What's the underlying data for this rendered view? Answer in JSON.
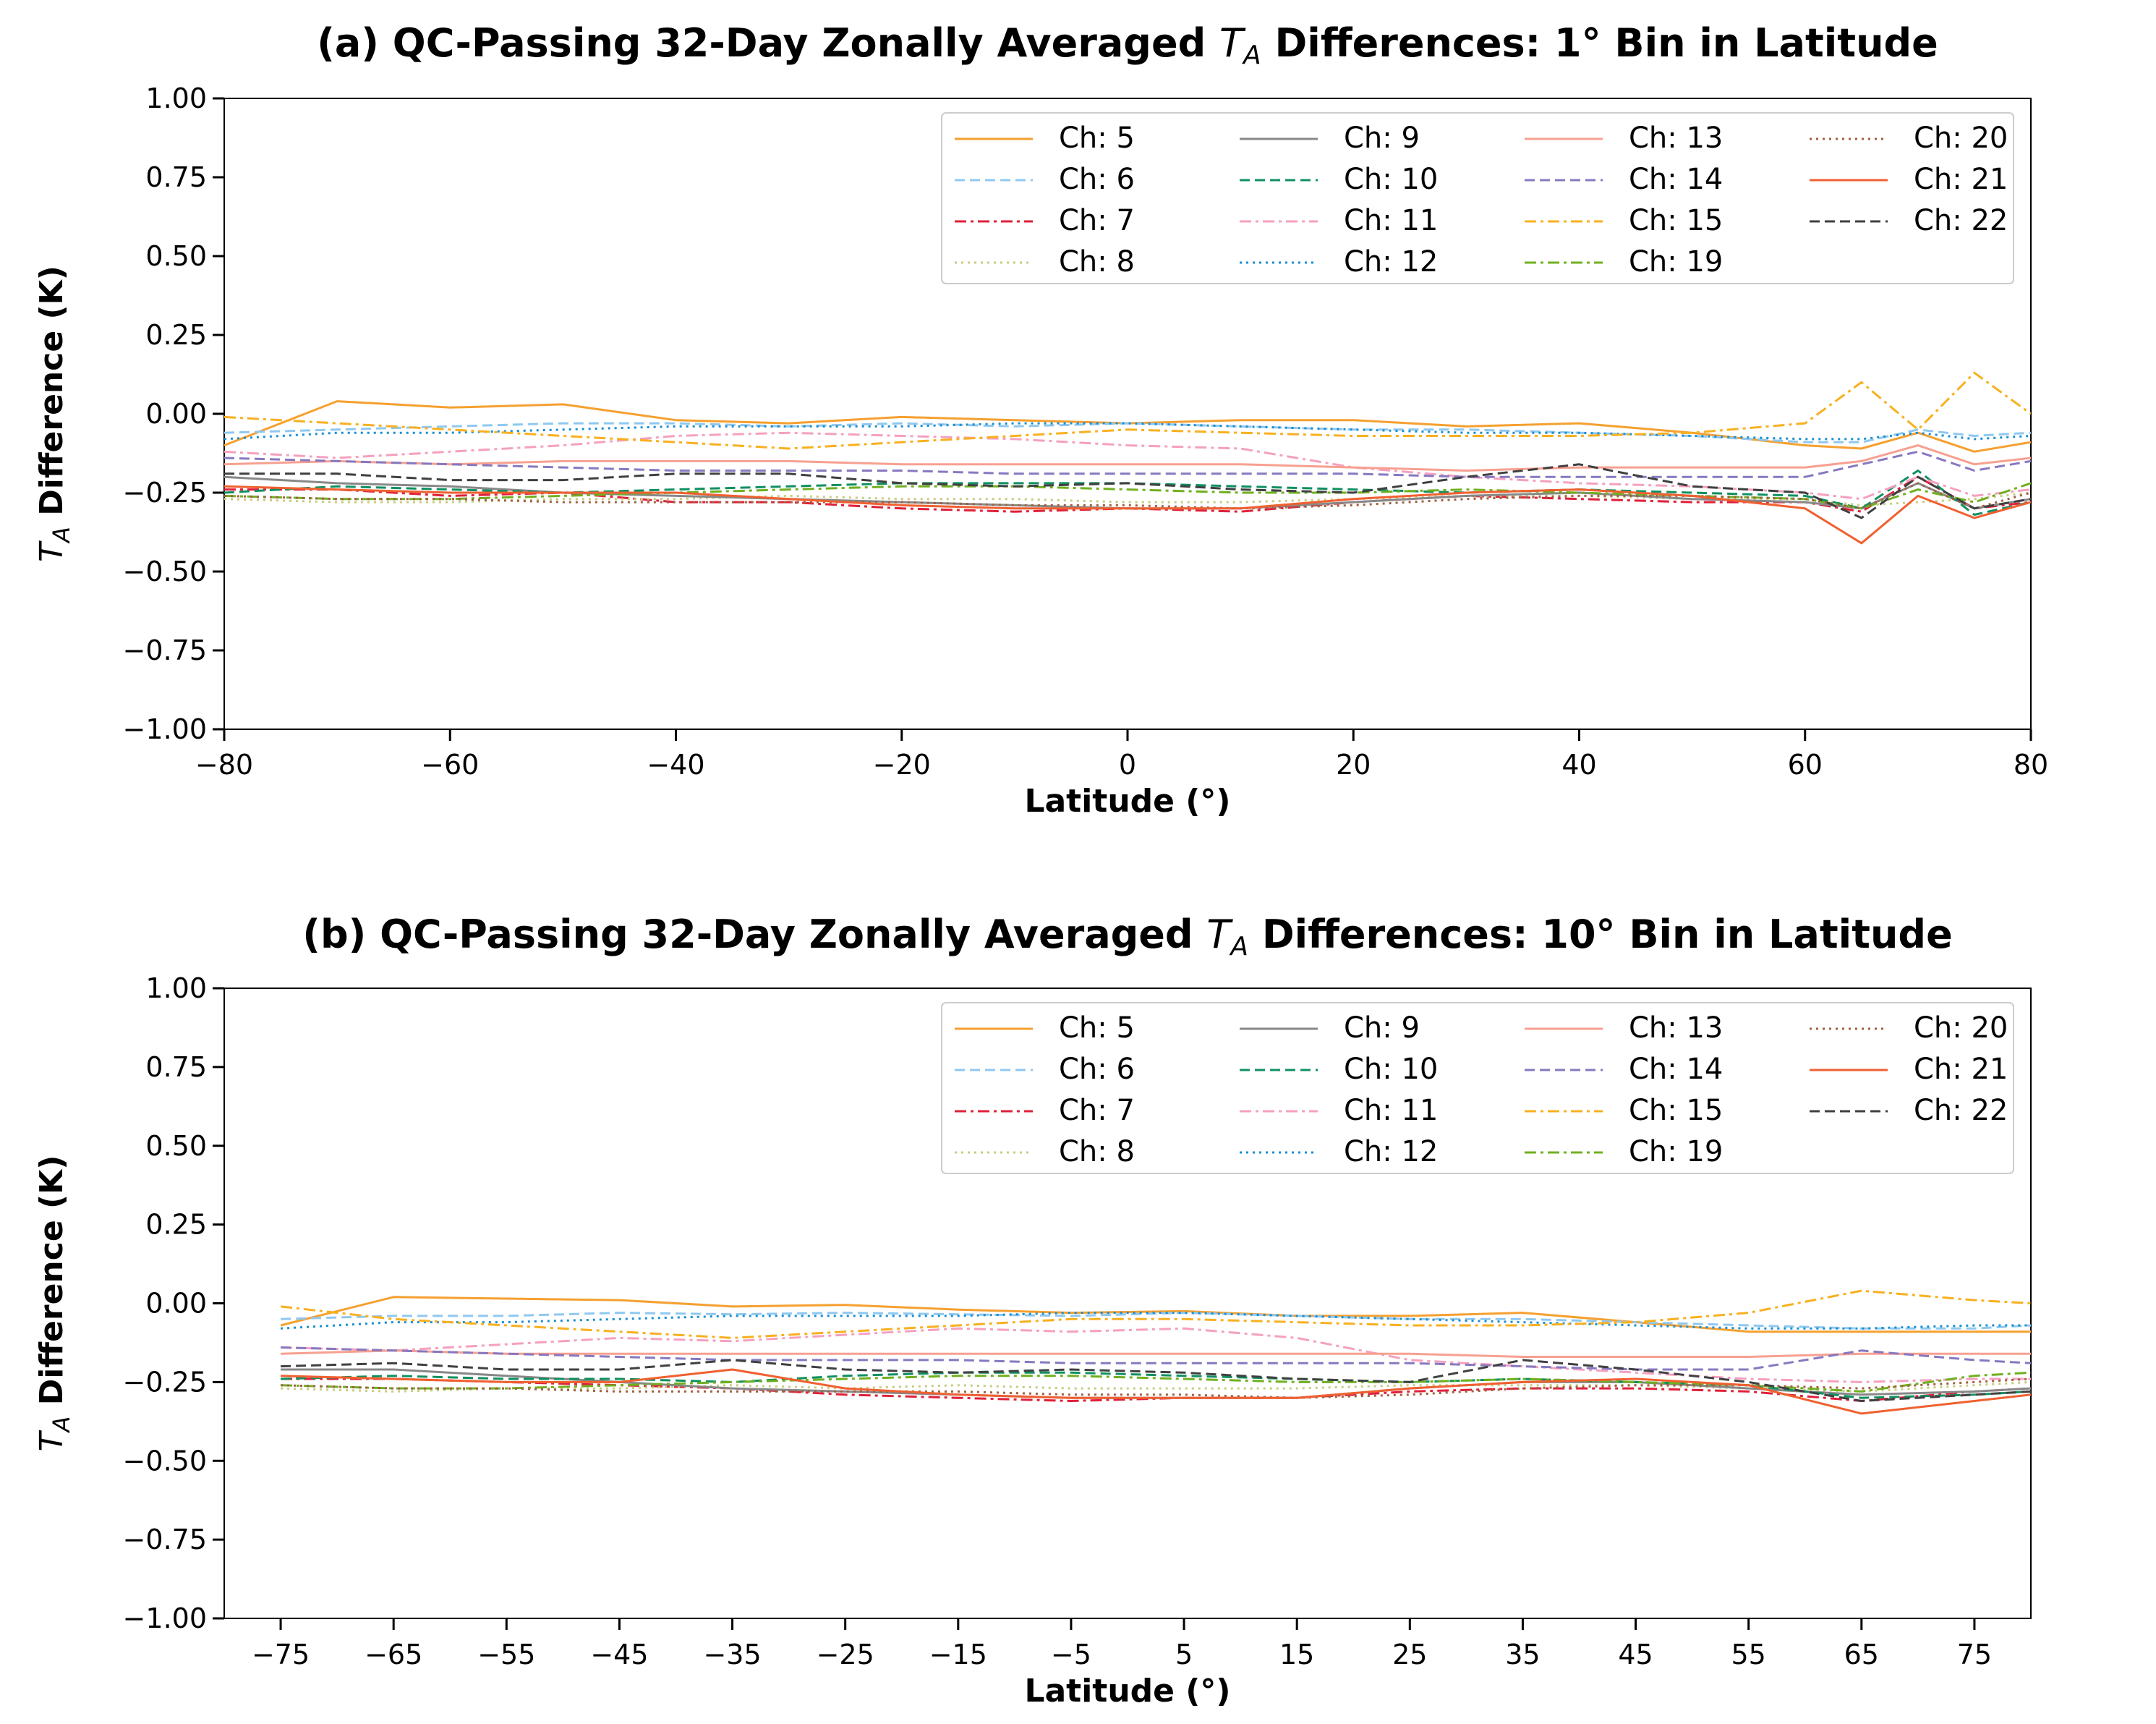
{
  "chart_data": [
    {
      "type": "line",
      "title_prefix": "(a) QC-Passing 32-Day Zonally Averaged ",
      "title_symbol": "T",
      "title_subscript": "A",
      "title_suffix": " Differences: 1° Bin in Latitude",
      "xlabel": "Latitude (°)",
      "ylabel_symbol": "T",
      "ylabel_subscript": "A",
      "ylabel_suffix": " Difference (K)",
      "xlim": [
        -80,
        80
      ],
      "ylim": [
        -1.0,
        1.0
      ],
      "xticks": [
        -80,
        -60,
        -40,
        -20,
        0,
        20,
        40,
        60,
        80
      ],
      "xtick_labels": [
        "−80",
        "−60",
        "−40",
        "−20",
        "0",
        "20",
        "40",
        "60",
        "80"
      ],
      "yticks": [
        1.0,
        0.75,
        0.5,
        0.25,
        0.0,
        -0.25,
        -0.5,
        -0.75,
        -1.0
      ],
      "ytick_labels": [
        "1.00",
        "0.75",
        "0.50",
        "0.25",
        "0.00",
        "−0.25",
        "−0.50",
        "−0.75",
        "−1.00"
      ],
      "legend_loc": "upper-right",
      "x": [
        -80,
        -70,
        -60,
        -50,
        -40,
        -30,
        -20,
        -10,
        0,
        10,
        20,
        30,
        40,
        50,
        60,
        65,
        70,
        75,
        80
      ],
      "series": [
        {
          "name": "Ch: 5",
          "color": "#f5a030",
          "dash": "solid",
          "values": [
            -0.1,
            0.04,
            0.02,
            0.03,
            -0.02,
            -0.03,
            -0.01,
            -0.02,
            -0.03,
            -0.02,
            -0.02,
            -0.04,
            -0.03,
            -0.06,
            -0.1,
            -0.11,
            -0.06,
            -0.12,
            -0.09
          ]
        },
        {
          "name": "Ch: 6",
          "color": "#8fc8f0",
          "dash": "dash",
          "values": [
            -0.06,
            -0.05,
            -0.04,
            -0.03,
            -0.03,
            -0.04,
            -0.03,
            -0.04,
            -0.03,
            -0.04,
            -0.05,
            -0.05,
            -0.06,
            -0.07,
            -0.09,
            -0.09,
            -0.05,
            -0.07,
            -0.06
          ]
        },
        {
          "name": "Ch: 7",
          "color": "#e0203a",
          "dash": "dashdot",
          "values": [
            -0.24,
            -0.24,
            -0.26,
            -0.25,
            -0.28,
            -0.28,
            -0.3,
            -0.31,
            -0.3,
            -0.31,
            -0.28,
            -0.26,
            -0.27,
            -0.28,
            -0.28,
            -0.31,
            -0.2,
            -0.3,
            -0.28
          ]
        },
        {
          "name": "Ch: 8",
          "color": "#c8cc80",
          "dash": "dot",
          "values": [
            -0.27,
            -0.28,
            -0.28,
            -0.27,
            -0.27,
            -0.26,
            -0.27,
            -0.27,
            -0.28,
            -0.28,
            -0.27,
            -0.26,
            -0.26,
            -0.27,
            -0.27,
            -0.29,
            -0.28,
            -0.27,
            -0.25
          ]
        },
        {
          "name": "Ch: 9",
          "color": "#888888",
          "dash": "solid",
          "values": [
            -0.2,
            -0.22,
            -0.23,
            -0.25,
            -0.26,
            -0.27,
            -0.28,
            -0.29,
            -0.3,
            -0.3,
            -0.28,
            -0.26,
            -0.25,
            -0.27,
            -0.28,
            -0.3,
            -0.22,
            -0.3,
            -0.27
          ]
        },
        {
          "name": "Ch: 10",
          "color": "#109060",
          "dash": "dash",
          "values": [
            -0.25,
            -0.23,
            -0.24,
            -0.25,
            -0.24,
            -0.23,
            -0.22,
            -0.22,
            -0.22,
            -0.23,
            -0.24,
            -0.25,
            -0.24,
            -0.25,
            -0.26,
            -0.3,
            -0.18,
            -0.32,
            -0.28
          ]
        },
        {
          "name": "Ch: 11",
          "color": "#f5a0c0",
          "dash": "dashdot",
          "values": [
            -0.12,
            -0.14,
            -0.12,
            -0.1,
            -0.07,
            -0.06,
            -0.07,
            -0.08,
            -0.1,
            -0.11,
            -0.17,
            -0.2,
            -0.22,
            -0.23,
            -0.25,
            -0.27,
            -0.2,
            -0.26,
            -0.24
          ]
        },
        {
          "name": "Ch: 12",
          "color": "#1a8fd0",
          "dash": "dot",
          "values": [
            -0.08,
            -0.06,
            -0.06,
            -0.05,
            -0.04,
            -0.04,
            -0.04,
            -0.03,
            -0.03,
            -0.04,
            -0.05,
            -0.06,
            -0.06,
            -0.07,
            -0.08,
            -0.08,
            -0.06,
            -0.08,
            -0.07
          ]
        },
        {
          "name": "Ch: 13",
          "color": "#f7a090",
          "dash": "solid",
          "values": [
            -0.16,
            -0.15,
            -0.16,
            -0.15,
            -0.15,
            -0.15,
            -0.16,
            -0.16,
            -0.16,
            -0.16,
            -0.17,
            -0.18,
            -0.17,
            -0.17,
            -0.17,
            -0.15,
            -0.1,
            -0.16,
            -0.14
          ]
        },
        {
          "name": "Ch: 14",
          "color": "#8878c0",
          "dash": "dash",
          "values": [
            -0.14,
            -0.15,
            -0.16,
            -0.17,
            -0.18,
            -0.18,
            -0.18,
            -0.19,
            -0.19,
            -0.19,
            -0.19,
            -0.2,
            -0.2,
            -0.2,
            -0.2,
            -0.16,
            -0.12,
            -0.18,
            -0.15
          ]
        },
        {
          "name": "Ch: 15",
          "color": "#f8b020",
          "dash": "dashdot",
          "values": [
            -0.01,
            -0.03,
            -0.05,
            -0.07,
            -0.09,
            -0.11,
            -0.09,
            -0.07,
            -0.05,
            -0.06,
            -0.07,
            -0.07,
            -0.07,
            -0.06,
            -0.03,
            0.1,
            -0.05,
            0.13,
            0.0
          ]
        },
        {
          "name": "Ch: 19",
          "color": "#70b020",
          "dash": "dashdot",
          "values": [
            -0.26,
            -0.27,
            -0.27,
            -0.26,
            -0.25,
            -0.24,
            -0.23,
            -0.23,
            -0.24,
            -0.25,
            -0.25,
            -0.24,
            -0.25,
            -0.26,
            -0.27,
            -0.3,
            -0.24,
            -0.28,
            -0.22
          ]
        },
        {
          "name": "Ch: 20",
          "color": "#a06040",
          "dash": "dot",
          "values": [
            -0.26,
            -0.27,
            -0.27,
            -0.28,
            -0.28,
            -0.28,
            -0.28,
            -0.29,
            -0.29,
            -0.3,
            -0.29,
            -0.27,
            -0.26,
            -0.26,
            -0.27,
            -0.3,
            -0.22,
            -0.3,
            -0.25
          ]
        },
        {
          "name": "Ch: 21",
          "color": "#f06030",
          "dash": "solid",
          "values": [
            -0.23,
            -0.24,
            -0.25,
            -0.25,
            -0.25,
            -0.27,
            -0.29,
            -0.3,
            -0.3,
            -0.3,
            -0.27,
            -0.25,
            -0.24,
            -0.26,
            -0.3,
            -0.41,
            -0.26,
            -0.33,
            -0.28
          ]
        },
        {
          "name": "Ch: 22",
          "color": "#404040",
          "dash": "dash",
          "values": [
            -0.19,
            -0.19,
            -0.21,
            -0.21,
            -0.19,
            -0.19,
            -0.22,
            -0.23,
            -0.22,
            -0.24,
            -0.25,
            -0.2,
            -0.16,
            -0.23,
            -0.25,
            -0.33,
            -0.2,
            -0.3,
            -0.27
          ]
        }
      ]
    },
    {
      "type": "line",
      "title_prefix": "(b) QC-Passing 32-Day Zonally Averaged ",
      "title_symbol": "T",
      "title_subscript": "A",
      "title_suffix": " Differences: 10° Bin in Latitude",
      "xlabel": "Latitude (°)",
      "ylabel_symbol": "T",
      "ylabel_subscript": "A",
      "ylabel_suffix": " Difference (K)",
      "xlim": [
        -80,
        80
      ],
      "ylim": [
        -1.0,
        1.0
      ],
      "xticks": [
        -75,
        -65,
        -55,
        -45,
        -35,
        -25,
        -15,
        -5,
        5,
        15,
        25,
        35,
        45,
        55,
        65,
        75
      ],
      "xtick_labels": [
        "−75",
        "−65",
        "−55",
        "−45",
        "−35",
        "−25",
        "−15",
        "−5",
        "5",
        "15",
        "25",
        "35",
        "45",
        "55",
        "65",
        "75"
      ],
      "yticks": [
        1.0,
        0.75,
        0.5,
        0.25,
        0.0,
        -0.25,
        -0.5,
        -0.75,
        -1.0
      ],
      "ytick_labels": [
        "1.00",
        "0.75",
        "0.50",
        "0.25",
        "0.00",
        "−0.25",
        "−0.50",
        "−0.75",
        "−1.00"
      ],
      "legend_loc": "upper-right",
      "x": [
        -75,
        -65,
        -55,
        -45,
        -35,
        -25,
        -15,
        -5,
        5,
        15,
        25,
        35,
        45,
        55,
        65,
        75,
        80
      ],
      "series": [
        {
          "name": "Ch: 5",
          "color": "#f5a030",
          "dash": "solid",
          "values": [
            -0.07,
            0.02,
            0.015,
            0.01,
            -0.01,
            -0.005,
            -0.02,
            -0.03,
            -0.025,
            -0.04,
            -0.04,
            -0.03,
            -0.06,
            -0.09,
            -0.09,
            -0.09,
            -0.09
          ]
        },
        {
          "name": "Ch: 6",
          "color": "#8fc8f0",
          "dash": "dash",
          "values": [
            -0.05,
            -0.04,
            -0.04,
            -0.03,
            -0.035,
            -0.03,
            -0.035,
            -0.04,
            -0.03,
            -0.04,
            -0.05,
            -0.05,
            -0.06,
            -0.07,
            -0.08,
            -0.08,
            -0.07
          ]
        },
        {
          "name": "Ch: 7",
          "color": "#e0203a",
          "dash": "dashdot",
          "values": [
            -0.24,
            -0.24,
            -0.25,
            -0.26,
            -0.27,
            -0.29,
            -0.3,
            -0.31,
            -0.3,
            -0.3,
            -0.28,
            -0.27,
            -0.27,
            -0.28,
            -0.31,
            -0.28,
            -0.27
          ]
        },
        {
          "name": "Ch: 8",
          "color": "#c8cc80",
          "dash": "dot",
          "values": [
            -0.27,
            -0.28,
            -0.27,
            -0.27,
            -0.26,
            -0.27,
            -0.26,
            -0.27,
            -0.27,
            -0.27,
            -0.26,
            -0.26,
            -0.26,
            -0.27,
            -0.28,
            -0.26,
            -0.25
          ]
        },
        {
          "name": "Ch: 9",
          "color": "#888888",
          "dash": "solid",
          "values": [
            -0.21,
            -0.21,
            -0.23,
            -0.25,
            -0.27,
            -0.28,
            -0.29,
            -0.3,
            -0.3,
            -0.3,
            -0.27,
            -0.25,
            -0.25,
            -0.27,
            -0.29,
            -0.28,
            -0.27
          ]
        },
        {
          "name": "Ch: 10",
          "color": "#109060",
          "dash": "dash",
          "values": [
            -0.24,
            -0.23,
            -0.24,
            -0.24,
            -0.25,
            -0.23,
            -0.22,
            -0.22,
            -0.23,
            -0.24,
            -0.25,
            -0.24,
            -0.25,
            -0.26,
            -0.3,
            -0.29,
            -0.28
          ]
        },
        {
          "name": "Ch: 11",
          "color": "#f5a0c0",
          "dash": "dashdot",
          "values": [
            -0.14,
            -0.15,
            -0.13,
            -0.11,
            -0.12,
            -0.1,
            -0.08,
            -0.09,
            -0.08,
            -0.11,
            -0.18,
            -0.2,
            -0.22,
            -0.24,
            -0.25,
            -0.24,
            -0.24
          ]
        },
        {
          "name": "Ch: 12",
          "color": "#1a8fd0",
          "dash": "dot",
          "values": [
            -0.08,
            -0.06,
            -0.06,
            -0.05,
            -0.04,
            -0.04,
            -0.04,
            -0.03,
            -0.03,
            -0.04,
            -0.05,
            -0.06,
            -0.07,
            -0.08,
            -0.08,
            -0.07,
            -0.07
          ]
        },
        {
          "name": "Ch: 13",
          "color": "#f7a090",
          "dash": "solid",
          "values": [
            -0.16,
            -0.15,
            -0.16,
            -0.16,
            -0.16,
            -0.16,
            -0.16,
            -0.16,
            -0.16,
            -0.16,
            -0.16,
            -0.17,
            -0.17,
            -0.17,
            -0.16,
            -0.16,
            -0.16
          ]
        },
        {
          "name": "Ch: 14",
          "color": "#8878c0",
          "dash": "dash",
          "values": [
            -0.14,
            -0.15,
            -0.16,
            -0.17,
            -0.18,
            -0.18,
            -0.18,
            -0.19,
            -0.19,
            -0.19,
            -0.19,
            -0.2,
            -0.21,
            -0.21,
            -0.15,
            -0.18,
            -0.19
          ]
        },
        {
          "name": "Ch: 15",
          "color": "#f8b020",
          "dash": "dashdot",
          "values": [
            -0.01,
            -0.05,
            -0.07,
            -0.09,
            -0.11,
            -0.09,
            -0.07,
            -0.05,
            -0.05,
            -0.06,
            -0.07,
            -0.07,
            -0.06,
            -0.03,
            0.04,
            0.01,
            0.0
          ]
        },
        {
          "name": "Ch: 19",
          "color": "#70b020",
          "dash": "dashdot",
          "values": [
            -0.26,
            -0.27,
            -0.27,
            -0.26,
            -0.25,
            -0.24,
            -0.23,
            -0.23,
            -0.24,
            -0.25,
            -0.25,
            -0.24,
            -0.25,
            -0.26,
            -0.28,
            -0.23,
            -0.22
          ]
        },
        {
          "name": "Ch: 20",
          "color": "#a06040",
          "dash": "dot",
          "values": [
            -0.26,
            -0.27,
            -0.27,
            -0.28,
            -0.28,
            -0.28,
            -0.28,
            -0.29,
            -0.29,
            -0.3,
            -0.29,
            -0.27,
            -0.26,
            -0.26,
            -0.27,
            -0.25,
            -0.24
          ]
        },
        {
          "name": "Ch: 21",
          "color": "#f06030",
          "dash": "solid",
          "values": [
            -0.23,
            -0.24,
            -0.25,
            -0.25,
            -0.21,
            -0.27,
            -0.29,
            -0.3,
            -0.3,
            -0.3,
            -0.27,
            -0.25,
            -0.24,
            -0.26,
            -0.35,
            -0.31,
            -0.29
          ]
        },
        {
          "name": "Ch: 22",
          "color": "#404040",
          "dash": "dash",
          "values": [
            -0.2,
            -0.19,
            -0.21,
            -0.21,
            -0.18,
            -0.21,
            -0.22,
            -0.21,
            -0.22,
            -0.24,
            -0.25,
            -0.18,
            -0.21,
            -0.25,
            -0.31,
            -0.29,
            -0.28
          ]
        }
      ]
    }
  ]
}
